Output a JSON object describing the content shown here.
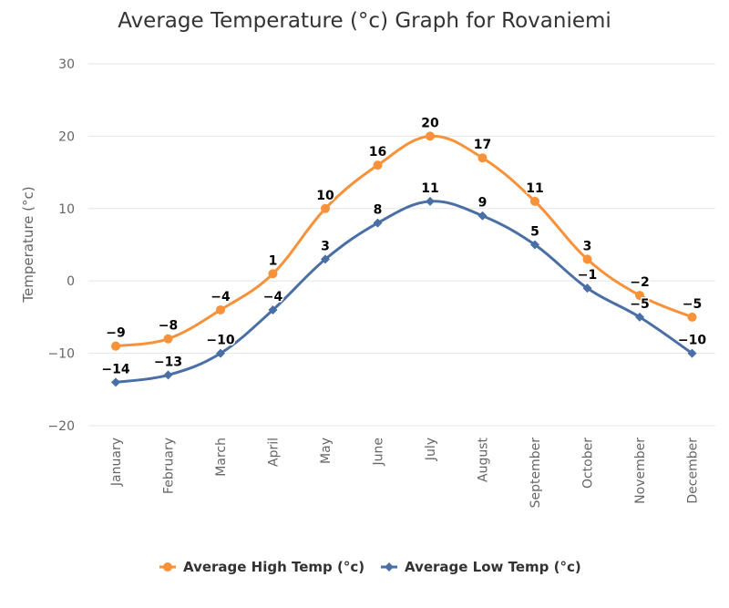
{
  "chart_data": {
    "type": "line",
    "title": "Average Temperature (°c) Graph for Rovaniemi",
    "xlabel": "",
    "ylabel": "Temperature (°c)",
    "ylim": [
      -20,
      30
    ],
    "yticks": [
      "30",
      "20",
      "10",
      "0",
      "−10",
      "−20"
    ],
    "categories": [
      "January",
      "February",
      "March",
      "April",
      "May",
      "June",
      "July",
      "August",
      "September",
      "October",
      "November",
      "December"
    ],
    "series": [
      {
        "name": "Average High Temp (°c)",
        "color": "#f7923a",
        "marker": "circle",
        "values": [
          -9,
          -8,
          -4,
          1,
          10,
          16,
          20,
          17,
          11,
          3,
          -2,
          -5
        ],
        "labels": [
          "−9",
          "−8",
          "−4",
          "1",
          "10",
          "16",
          "20",
          "17",
          "11",
          "3",
          "−2",
          "−5"
        ]
      },
      {
        "name": "Average Low Temp (°c)",
        "color": "#4a6fa5",
        "marker": "diamond",
        "values": [
          -14,
          -13,
          -10,
          -4,
          3,
          8,
          11,
          9,
          5,
          -1,
          -5,
          -10
        ],
        "labels": [
          "−14",
          "−13",
          "−10",
          "−4",
          "3",
          "8",
          "11",
          "9",
          "5",
          "−1",
          "−5",
          "−10"
        ]
      }
    ],
    "grid": true,
    "legend": "bottom-center"
  }
}
